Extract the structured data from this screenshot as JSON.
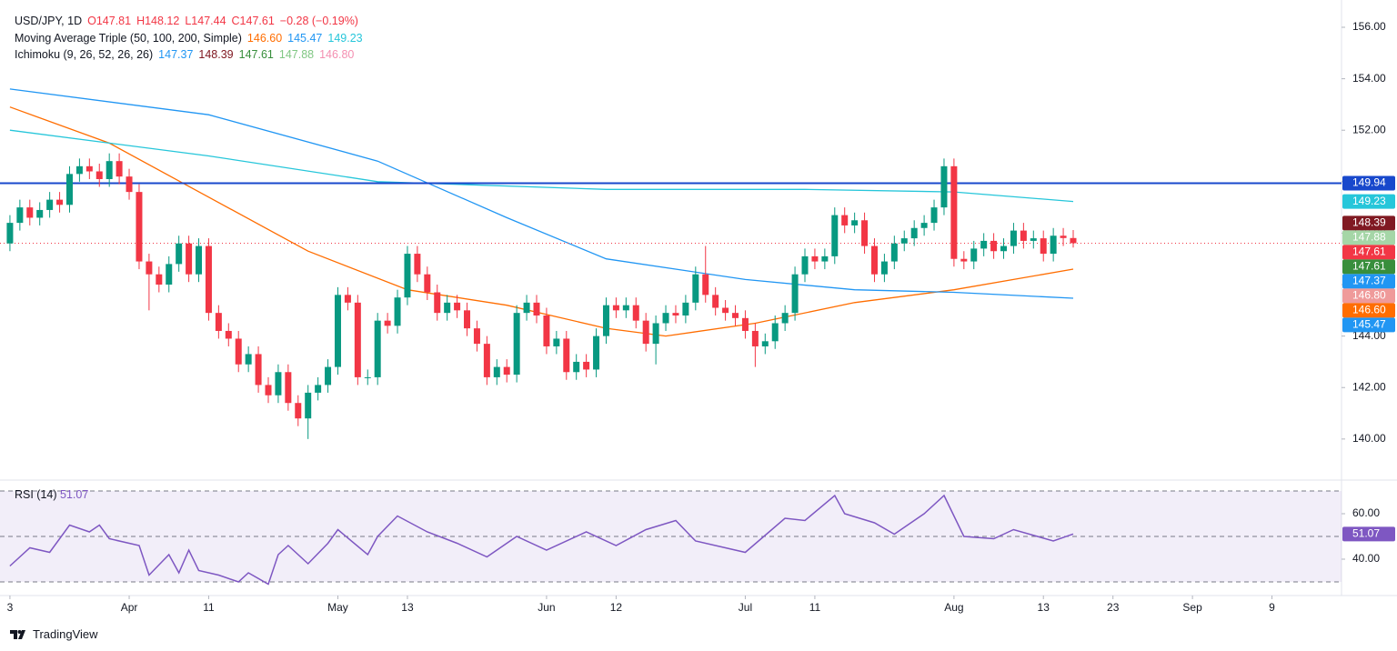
{
  "chart_data": [
    {
      "type": "candlestick",
      "legend": [
        {
          "title": "USD/JPY, 1D",
          "items": [
            {
              "text": "O147.81",
              "color": "#f23645"
            },
            {
              "text": "H148.12",
              "color": "#f23645"
            },
            {
              "text": "L147.44",
              "color": "#f23645"
            },
            {
              "text": "C147.61",
              "color": "#f23645"
            },
            {
              "text": "−0.28 (−0.19%)",
              "color": "#f23645"
            }
          ]
        },
        {
          "title": "Moving Average Triple (50, 100, 200, Simple)",
          "items": [
            {
              "text": "146.60",
              "color": "#ff6d00"
            },
            {
              "text": "145.47",
              "color": "#2196f3"
            },
            {
              "text": "149.23",
              "color": "#26c6da"
            }
          ]
        },
        {
          "title": "Ichimoku (9, 26, 52, 26, 26)",
          "items": [
            {
              "text": "147.37",
              "color": "#2196f3"
            },
            {
              "text": "148.39",
              "color": "#801922"
            },
            {
              "text": "147.61",
              "color": "#388e3c"
            },
            {
              "text": "147.88",
              "color": "#81c784"
            },
            {
              "text": "146.80",
              "color": "#f48fb1"
            }
          ]
        }
      ],
      "up_color": "#089981",
      "down_color": "#f23645",
      "open": [
        147.6,
        148.4,
        149.0,
        148.6,
        148.9,
        149.3,
        149.1,
        150.3,
        150.6,
        150.4,
        150.1,
        150.8,
        150.2,
        149.6,
        146.9,
        146.4,
        146.0,
        146.8,
        147.6,
        146.4,
        147.5,
        144.9,
        144.2,
        143.9,
        142.9,
        143.3,
        142.1,
        141.7,
        142.6,
        141.4,
        140.8,
        141.8,
        142.1,
        142.8,
        145.6,
        145.3,
        142.4,
        142.4,
        144.6,
        144.4,
        145.5,
        147.2,
        146.4,
        145.7,
        144.9,
        145.3,
        145.0,
        144.3,
        143.7,
        142.4,
        142.8,
        142.5,
        144.9,
        145.3,
        144.8,
        143.6,
        143.9,
        142.6,
        143.0,
        142.7,
        144.0,
        145.2,
        145.0,
        145.2,
        144.6,
        143.7,
        144.5,
        144.9,
        144.8,
        145.3,
        146.4,
        145.6,
        145.1,
        144.9,
        144.7,
        144.2,
        143.6,
        143.8,
        144.5,
        144.9,
        146.4,
        147.1,
        146.9,
        147.1,
        148.7,
        148.3,
        148.5,
        147.5,
        146.4,
        146.9,
        147.6,
        147.8,
        148.2,
        148.4,
        149.0,
        150.6,
        147.0,
        146.9,
        147.4,
        147.7,
        147.3,
        147.5,
        148.1,
        147.7,
        147.8,
        147.2,
        147.9,
        147.81
      ],
      "high": [
        148.7,
        149.3,
        149.3,
        149.2,
        149.6,
        149.6,
        150.6,
        150.9,
        150.9,
        150.7,
        151.1,
        151.1,
        150.5,
        149.9,
        147.2,
        146.7,
        147.1,
        147.9,
        147.9,
        147.8,
        147.8,
        145.2,
        144.5,
        144.2,
        143.6,
        143.6,
        142.4,
        142.9,
        142.9,
        141.7,
        142.1,
        142.4,
        143.1,
        145.9,
        145.9,
        145.6,
        142.7,
        144.9,
        144.9,
        145.8,
        147.5,
        147.5,
        146.7,
        146.0,
        145.6,
        145.6,
        145.3,
        144.6,
        144.0,
        143.1,
        143.1,
        145.2,
        145.6,
        145.6,
        145.1,
        144.2,
        144.2,
        143.3,
        143.3,
        144.3,
        145.5,
        145.5,
        145.5,
        145.5,
        144.9,
        144.8,
        145.2,
        145.2,
        145.6,
        146.7,
        147.5,
        145.9,
        145.4,
        145.2,
        145.0,
        144.5,
        144.1,
        144.8,
        145.2,
        146.7,
        147.4,
        147.4,
        147.4,
        149.0,
        149.0,
        148.8,
        148.8,
        147.8,
        147.2,
        147.9,
        148.1,
        148.5,
        148.7,
        149.3,
        150.9,
        150.9,
        147.3,
        147.7,
        148.0,
        148.0,
        147.8,
        148.4,
        148.4,
        148.1,
        148.1,
        148.2,
        148.2,
        148.12
      ],
      "low": [
        147.3,
        148.1,
        148.3,
        148.3,
        148.6,
        148.8,
        148.8,
        150.0,
        150.1,
        149.8,
        149.8,
        149.9,
        149.3,
        146.6,
        145.0,
        145.7,
        145.7,
        146.5,
        146.1,
        146.1,
        144.6,
        143.9,
        143.6,
        142.6,
        142.6,
        141.8,
        141.4,
        141.4,
        141.1,
        140.5,
        140.0,
        141.5,
        141.8,
        142.5,
        145.0,
        142.1,
        142.1,
        142.1,
        144.1,
        144.1,
        145.2,
        146.1,
        145.4,
        144.6,
        144.6,
        144.7,
        144.0,
        143.4,
        142.1,
        142.1,
        142.2,
        142.2,
        144.6,
        144.5,
        143.3,
        143.3,
        142.3,
        142.3,
        142.4,
        142.4,
        143.7,
        144.7,
        144.7,
        144.3,
        143.4,
        142.9,
        144.2,
        144.5,
        144.5,
        145.0,
        145.3,
        144.8,
        144.6,
        144.4,
        143.9,
        142.8,
        143.3,
        143.5,
        144.2,
        144.6,
        146.1,
        146.6,
        146.6,
        146.8,
        148.0,
        148.0,
        147.2,
        146.1,
        146.1,
        146.6,
        147.3,
        147.5,
        147.9,
        148.1,
        148.7,
        146.7,
        146.6,
        146.6,
        147.1,
        147.0,
        147.0,
        147.2,
        147.4,
        147.4,
        146.9,
        146.9,
        147.5,
        147.44
      ],
      "close": [
        148.4,
        149.0,
        148.6,
        148.9,
        149.3,
        149.1,
        150.3,
        150.6,
        150.4,
        150.1,
        150.8,
        150.2,
        149.6,
        146.9,
        146.4,
        146.0,
        146.8,
        147.6,
        146.4,
        147.5,
        144.9,
        144.2,
        143.9,
        142.9,
        143.3,
        142.1,
        141.7,
        142.6,
        141.4,
        140.8,
        141.8,
        142.1,
        142.8,
        145.6,
        145.3,
        142.4,
        142.4,
        144.6,
        144.4,
        145.5,
        147.2,
        146.4,
        145.7,
        144.9,
        145.3,
        145.0,
        144.3,
        143.7,
        142.4,
        142.8,
        142.5,
        144.9,
        145.3,
        144.8,
        143.6,
        143.9,
        142.6,
        143.0,
        142.7,
        144.0,
        145.2,
        145.0,
        145.2,
        144.6,
        143.7,
        144.5,
        144.9,
        144.8,
        145.3,
        146.4,
        145.6,
        145.1,
        144.9,
        144.7,
        144.2,
        143.6,
        143.8,
        144.5,
        144.9,
        146.4,
        147.1,
        146.9,
        147.1,
        148.7,
        148.3,
        148.5,
        147.5,
        146.4,
        146.9,
        147.6,
        147.8,
        148.2,
        148.4,
        149.0,
        150.6,
        147.0,
        146.9,
        147.4,
        147.7,
        147.3,
        147.5,
        148.1,
        147.7,
        147.8,
        147.2,
        147.9,
        147.81,
        147.61
      ],
      "lines": [
        {
          "color": "#ff6d00",
          "x": [
            0,
            10,
            20,
            30,
            40,
            50,
            60,
            66,
            75,
            85,
            95,
            107
          ],
          "values": [
            152.9,
            151.5,
            149.4,
            147.3,
            145.8,
            145.2,
            144.3,
            144.0,
            144.5,
            145.3,
            145.8,
            146.6
          ]
        },
        {
          "color": "#2196f3",
          "x": [
            0,
            20,
            37,
            50,
            60,
            74,
            85,
            95,
            107
          ],
          "values": [
            153.6,
            152.6,
            150.8,
            148.6,
            147.0,
            146.2,
            145.8,
            145.7,
            145.47
          ]
        },
        {
          "color": "#26c6da",
          "x": [
            0,
            20,
            37,
            60,
            80,
            95,
            107
          ],
          "values": [
            152.0,
            151.0,
            150.0,
            149.7,
            149.7,
            149.6,
            149.23
          ]
        }
      ],
      "hline": {
        "value": 149.94,
        "color": "#1848cc"
      },
      "last_price_color": "#f23645",
      "price_badges": [
        {
          "value": 149.94,
          "label": "149.94",
          "color": "#1848cc"
        },
        {
          "value": 149.23,
          "label": "149.23",
          "color": "#26c6da"
        },
        {
          "value": 148.39,
          "label": "148.39",
          "color": "#801922"
        },
        {
          "value": 147.88,
          "label": "147.88",
          "color": "#a5d6a7"
        },
        {
          "value": 147.61,
          "label": "147.61",
          "color": "#f23645"
        },
        {
          "value": 147.61,
          "label": "147.61",
          "color": "#388e3c"
        },
        {
          "value": 147.37,
          "label": "147.37",
          "color": "#2196f3"
        },
        {
          "value": 146.8,
          "label": "146.80",
          "color": "#ef9a9a"
        },
        {
          "value": 146.6,
          "label": "146.60",
          "color": "#ff6d00"
        },
        {
          "value": 145.47,
          "label": "145.47",
          "color": "#2196f3"
        }
      ],
      "xlim": [
        -1,
        134
      ],
      "xticks": [
        {
          "value": 0,
          "label": "3"
        },
        {
          "value": 12,
          "label": "Apr"
        },
        {
          "value": 20,
          "label": "11"
        },
        {
          "value": 33,
          "label": "May"
        },
        {
          "value": 40,
          "label": "13"
        },
        {
          "value": 54,
          "label": "Jun"
        },
        {
          "value": 61,
          "label": "12"
        },
        {
          "value": 74,
          "label": "Jul"
        },
        {
          "value": 81,
          "label": "11"
        },
        {
          "value": 95,
          "label": "Aug"
        },
        {
          "value": 104,
          "label": "13"
        },
        {
          "value": 111,
          "label": "23"
        },
        {
          "value": 119,
          "label": "Sep"
        },
        {
          "value": 127,
          "label": "9"
        }
      ],
      "ylim": [
        138.44,
        157.06
      ],
      "yticks": [
        {
          "value": 140,
          "label": "140.00"
        },
        {
          "value": 142,
          "label": "142.00"
        },
        {
          "value": 144,
          "label": "144.00"
        },
        {
          "value": 146,
          "label": "146.00"
        },
        {
          "value": 148,
          "label": "148.00"
        },
        {
          "value": 150,
          "label": "150.00"
        },
        {
          "value": 152,
          "label": "152.00"
        },
        {
          "value": 154,
          "label": "154.00"
        },
        {
          "value": 156,
          "label": "156.00"
        }
      ]
    },
    {
      "type": "line",
      "title": "RSI (14)",
      "value_label": "51.07",
      "color": "#7e57c2",
      "x": [
        0,
        2,
        4,
        6,
        8,
        9,
        10,
        13,
        14,
        16,
        17,
        18,
        19,
        21,
        23,
        24,
        26,
        27,
        28,
        30,
        32,
        33,
        36,
        37,
        39,
        42,
        45,
        48,
        51,
        54,
        58,
        61,
        64,
        67,
        69,
        74,
        78,
        80,
        83,
        84,
        87,
        89,
        92,
        94,
        96,
        99,
        101,
        105,
        107
      ],
      "values": [
        37,
        45,
        43,
        55,
        52,
        55,
        49,
        46,
        33,
        42,
        34,
        44,
        35,
        33,
        30,
        34,
        29,
        42,
        46,
        38,
        47,
        53,
        42,
        50,
        59,
        52,
        47,
        41,
        50,
        44,
        52,
        46,
        53,
        57,
        48,
        43,
        58,
        57,
        68,
        60,
        56,
        51,
        60,
        68,
        50,
        49,
        53,
        48,
        51.07
      ],
      "levels": [
        30,
        50,
        70
      ],
      "ylim": [
        24,
        74
      ],
      "yticks": [
        {
          "value": 40,
          "label": "40.00"
        },
        {
          "value": 60,
          "label": "60.00"
        }
      ]
    }
  ],
  "footer": "TradingView"
}
